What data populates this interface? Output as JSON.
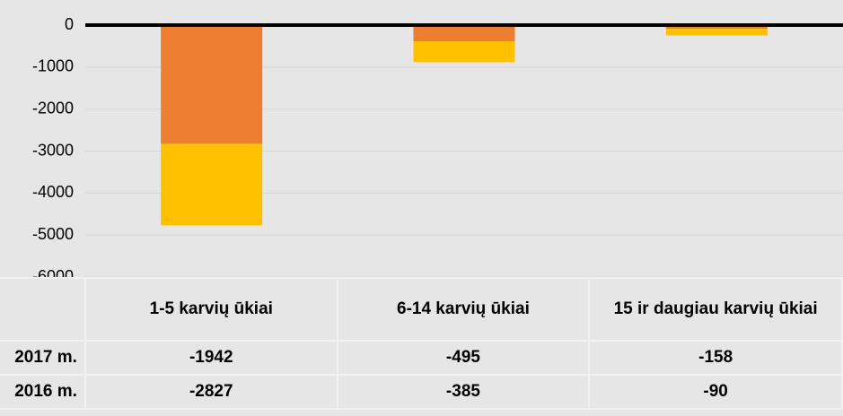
{
  "chart_data": {
    "type": "stacked-bar",
    "categories": [
      "1-5 karvių ūkiai",
      "6-14 karvių ūkiai",
      "15 ir daugiau karvių ūkiai"
    ],
    "series": [
      {
        "name": "2017 m.",
        "color": "#ffc000",
        "values": [
          -1942,
          -495,
          -158
        ]
      },
      {
        "name": "2016 m.",
        "color": "#ed7d31",
        "values": [
          -2827,
          -385,
          -90
        ]
      }
    ],
    "ylim": [
      -6000,
      0
    ],
    "yticks": [
      0,
      -1000,
      -2000,
      -3000,
      -4000,
      -5000,
      -6000
    ],
    "grid": true
  }
}
